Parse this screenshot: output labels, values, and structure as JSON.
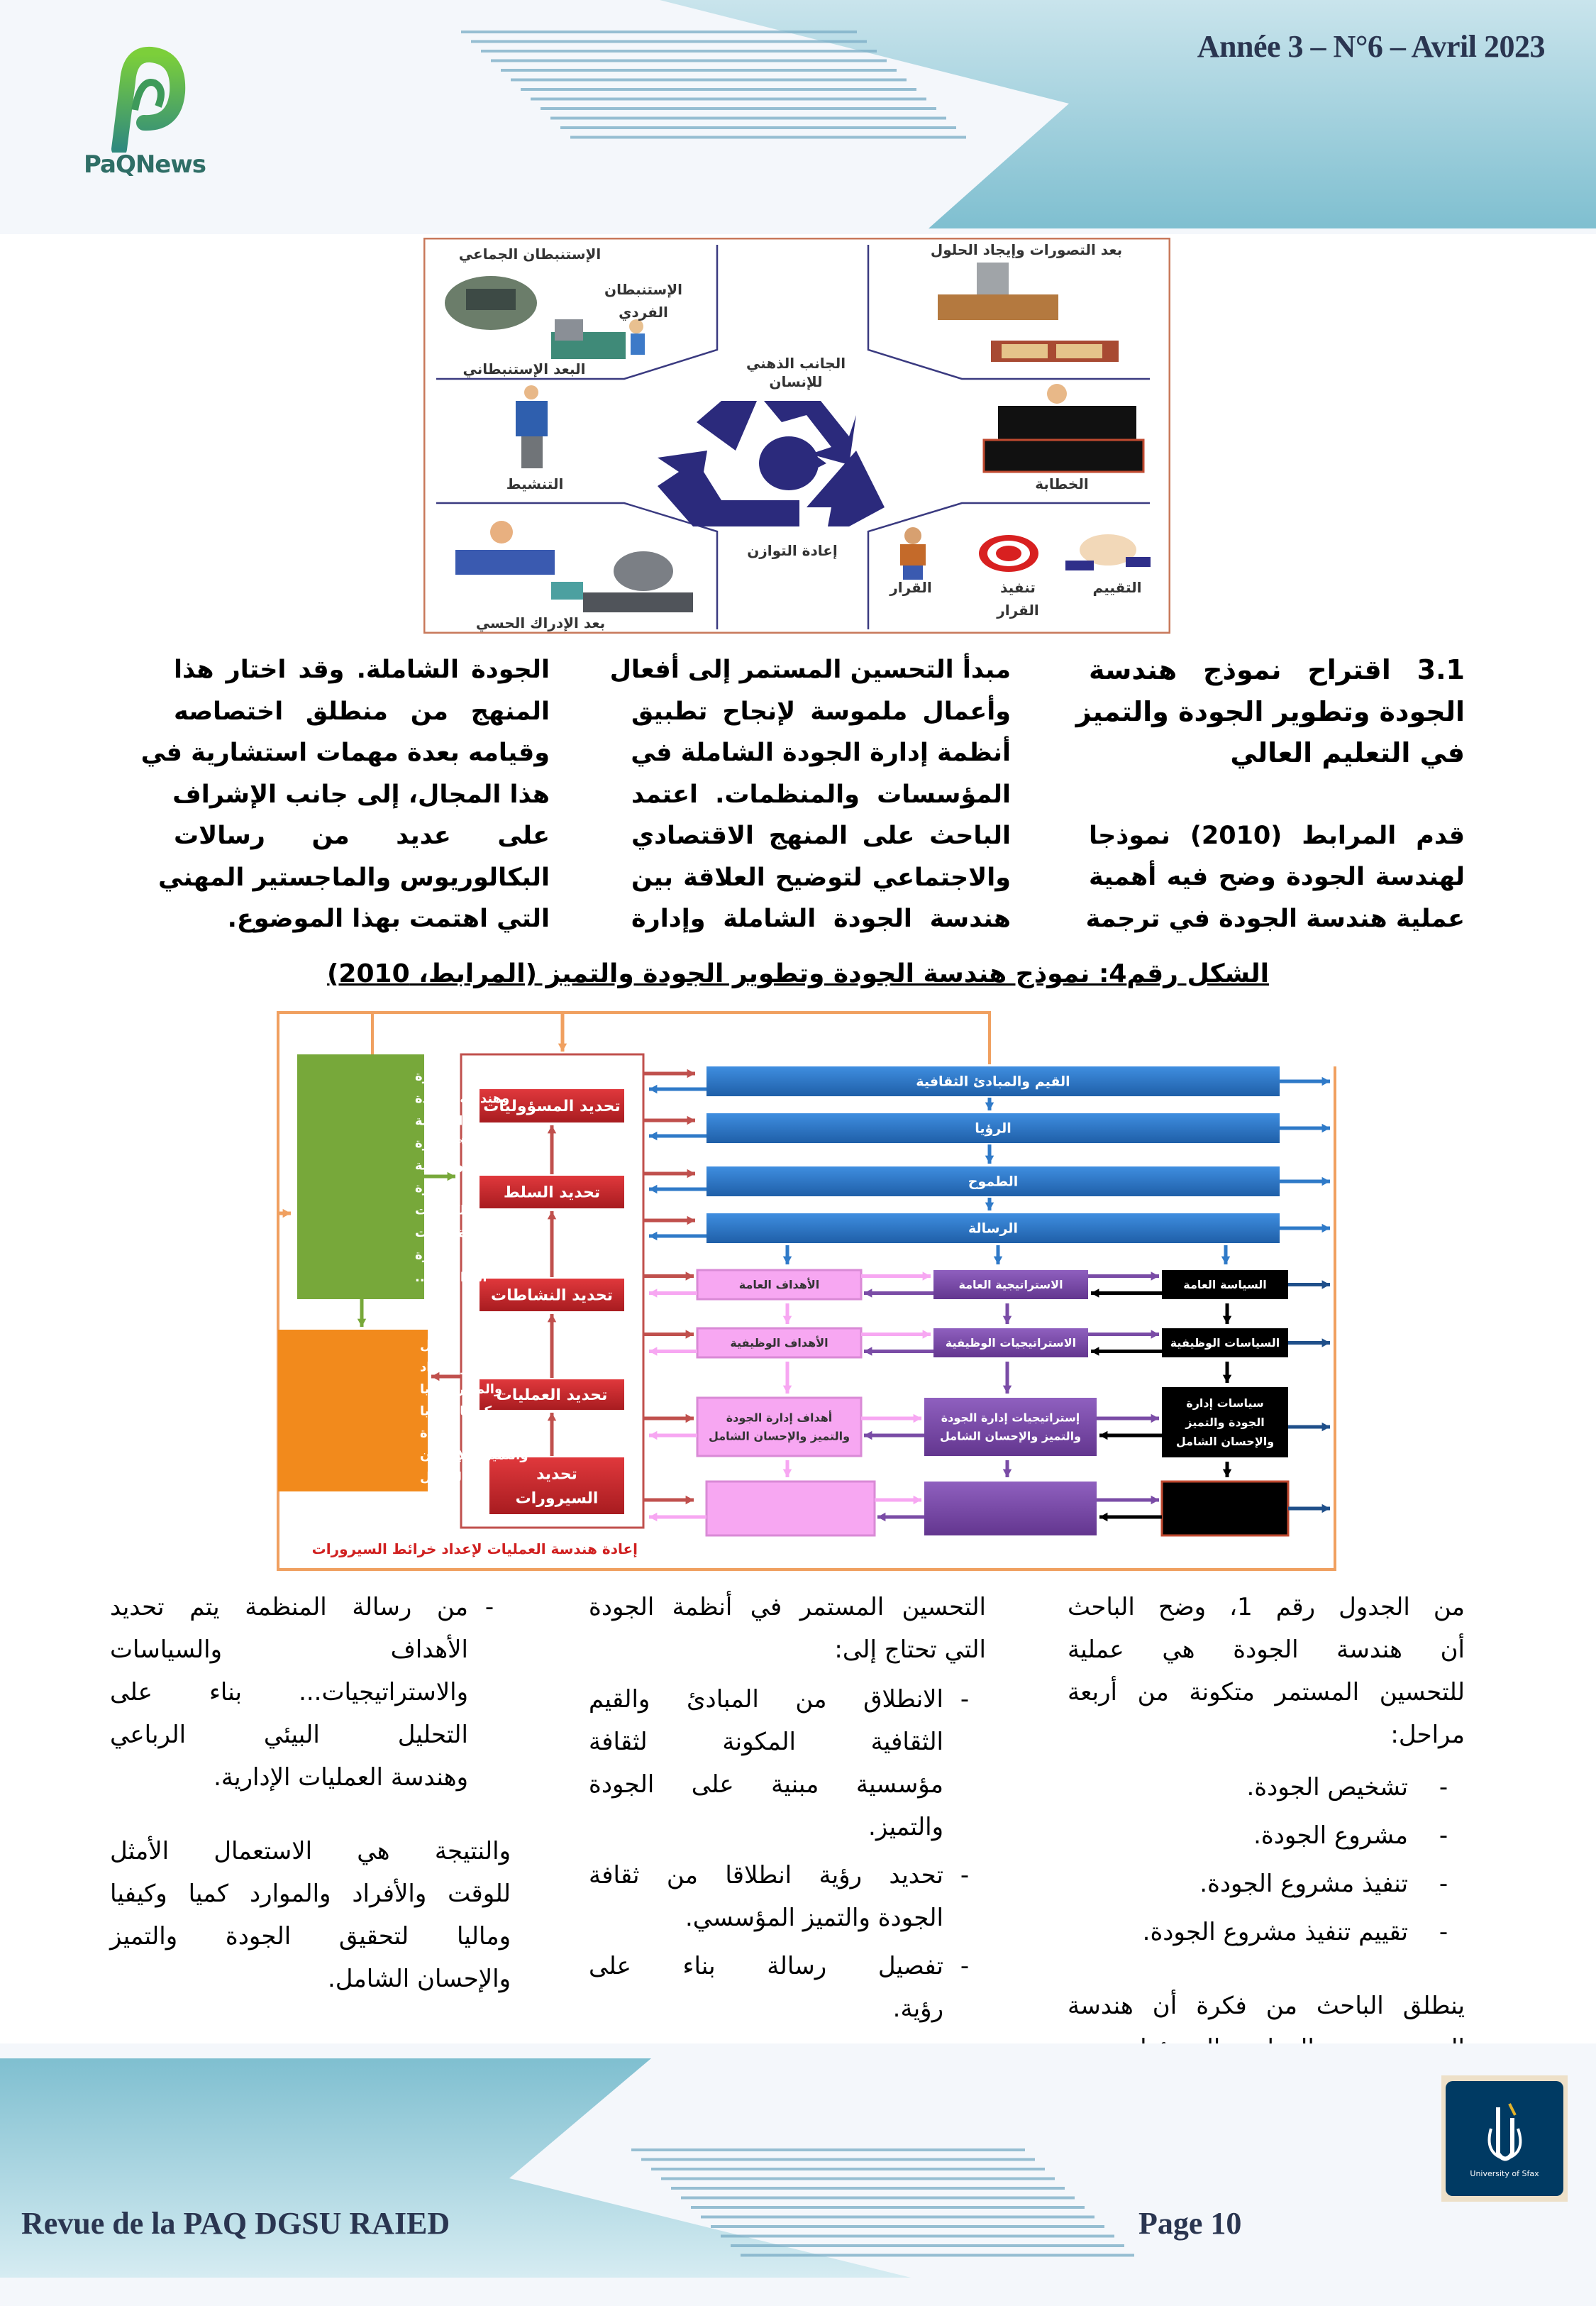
{
  "header": {
    "logo_text": "PaQNews",
    "issue": "Année 3 – N°6 – Avril 2023"
  },
  "figure_top": {
    "labels": {
      "collective_introspection": "الإستنبطان الجماعي",
      "individual_introspection_1": "الإستنبطان",
      "individual_introspection_2": "الفردي",
      "introspective_dimension": "البعد الإستنبطاني",
      "conceptions_dimension": "بعد التصورات وإيجاد الحلول",
      "mental_side_1": "الجانب الذهني",
      "mental_side_2": "للإنسان",
      "animation": "التنشيط",
      "speech": "الخطابة",
      "rebalancing": "إعادة التوازن",
      "sensory_dimension": "بعد الإدراك الحسي",
      "decision": "القرار",
      "execute_1": "تنفيذ",
      "execute_2": "القرار",
      "evaluation": "التقييم"
    },
    "symbol_color": "#2b2a7c"
  },
  "block1": {
    "right": {
      "heading": [
        "3.1   اقتراح نموذج هندسة",
        "الجودة وتطوير الجودة والتميز",
        "في التعليم العالي"
      ],
      "lines": [
        "قدم المرابط (2010) نموذجا",
        "لهندسة الجودة وضح فيه أهمية",
        "عملية هندسة الجودة في ترجمة"
      ]
    },
    "middle": [
      "مبدأ التحسين المستمر إلى أفعال",
      "وأعمال ملموسة لإنجاح تطبيق",
      "أنظمة إدارة الجودة الشاملة في",
      "المؤسسات والمنظمات. اعتمد",
      "الباحث على المنهج الاقتصادي",
      "والاجتماعي لتوضيح العلاقة بين",
      "هندسة الجودة الشاملة وإدارة"
    ],
    "left": [
      "الجودة الشاملة. وقد اختار هذا",
      "المنهج من منطلق اختصاصه",
      "وقيامه بعدة مهمات استشارية في",
      "هذا المجال، إلى جانب الإشراف",
      "على عديد من رسالات",
      "البكالوريوس والماجستير المهني",
      "التي اهتمت بهذا الموضوع."
    ]
  },
  "caption": "الشكل رقم4: نموذج هندسة الجودة وتطوير الجودة والتميز (المرابط، 2010)",
  "diagram": {
    "green_box": [
      "* إدارة",
      "وهندسة الجودة",
      "الشاملة",
      "* الإدارة",
      "اللوجستية",
      "* إدارة",
      "الكفاءات",
      "* إدارة الوقت",
      "* إدارة",
      "النزاعات ..."
    ],
    "orange_box": [
      "الاستعمال الأمثل",
      "للوقت والأفراد",
      "والموارد كميا",
      "وكيفيا وماليا",
      "لتحقيق الجودة",
      "والتميز والإحسان",
      "الشامل"
    ],
    "red_buttons": [
      [
        "تحديد المسؤوليات"
      ],
      [
        "تحديد السلط"
      ],
      [
        "تحديد النشاطات"
      ],
      [
        "تحديد العمليات"
      ],
      [
        "تحديد",
        "السيرورات"
      ]
    ],
    "blue_bars": [
      "القيم والمبادئ الثقافية",
      "الرؤيا",
      "الطموح",
      "الرسالة"
    ],
    "pink_boxes": [
      [
        "الأهداف العامة"
      ],
      [
        "الأهداف الوظيفية"
      ],
      [
        "أهداف إدارة الجودة",
        "والتميز والإحسان الشامل"
      ],
      []
    ],
    "purple_boxes": [
      [
        "الاستراتيجية العامة"
      ],
      [
        "الاستراتيجيات الوظيفية"
      ],
      [
        "إستراتيجيات إدارة الجودة",
        "والتميز والإحسان الشامل"
      ],
      []
    ],
    "black_boxes": [
      [
        "السياسة العامة"
      ],
      [
        "السياسات الوظيفية"
      ],
      [
        "سياسات إدارة",
        "الجودة والتميز",
        "والإحسان الشامل"
      ],
      []
    ],
    "bottom_label": "إعادة هندسة العمليات لإعداد خرائط السيرورات",
    "colors": {
      "frame": "#f0a060",
      "green": "#77a83a",
      "orange": "#f28a1c",
      "red": "#c8262b",
      "blue": "#2f7ac8",
      "pink": "#f7a7f2",
      "purple": "#7a4ca6",
      "black": "#000000"
    }
  },
  "block2": {
    "right": {
      "intro": [
        "من الجدول رقم 1، وضح الباحث",
        "أن هندسة الجودة هي عملية",
        "للتحسين المستمر متكونة من أربعة",
        "مراحل:"
      ],
      "items": [
        "تشخيص الجودة.",
        "مشروع الجودة.",
        "تنفيذ مشروع الجودة.",
        "تقييم تنفيذ مشروع الجودة."
      ],
      "outro": [
        "ينطلق الباحث من فكرة أن هندسة",
        "الجودة هي العملية المسؤولة عن"
      ]
    },
    "middle": {
      "intro": [
        "التحسين المستمر في أنظمة الجودة",
        "التي تحتاج إلى:"
      ],
      "items": [
        [
          "الانطلاق من المبادئ والقيم",
          "الثقافية المكونة لثقافة",
          "مؤسسية مبنية على الجودة",
          "والتميز."
        ],
        [
          "تحديد رؤية انطلاقا من ثقافة",
          "الجودة والتميز المؤسسي."
        ],
        [
          "تفصيل رسالة بناء على",
          "رؤية."
        ]
      ]
    },
    "left": {
      "item": [
        "من رسالة المنظمة يتم تحديد",
        "الأهداف والسياسات",
        "والاستراتيجيات... بناء على",
        "التحليل البيئي الرباعي",
        "وهندسة العمليات الإدارية."
      ],
      "outro": [
        "والنتيجة هي الاستعمال الأمثل",
        "للوقت والأفراد والموارد كميا وكيفيا",
        "وماليا لتحقيق الجودة والتميز",
        "والإحسان الشامل."
      ]
    },
    "dash": "-"
  },
  "footer": {
    "journal": "Revue de la PAQ DGSU RAIED",
    "page": "Page 10",
    "university_logo_text": "University of Sfax"
  }
}
